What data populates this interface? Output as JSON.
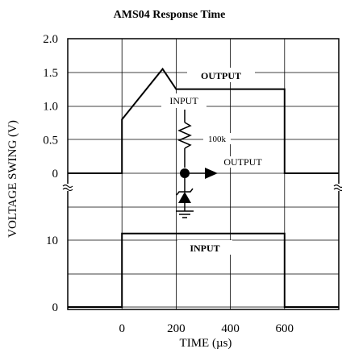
{
  "chart_data": {
    "type": "line",
    "title": "AMS04 Response Time",
    "xlabel": "TIME (µs)",
    "ylabel": "VOLTAGE SWING (V)",
    "x_ticks": [
      "0",
      "200",
      "400",
      "600"
    ],
    "upper_panel": {
      "y_ticks": [
        "2.0",
        "1.5",
        "1.0",
        "0.5",
        "0"
      ],
      "ylim": [
        0,
        2.0
      ],
      "xlim": [
        -200,
        800
      ],
      "series": [
        {
          "name": "OUTPUT",
          "x": [
            -200,
            0,
            0,
            150,
            200,
            600,
            600,
            800
          ],
          "y": [
            0,
            0,
            0.8,
            1.55,
            1.25,
            1.25,
            0,
            0
          ]
        }
      ]
    },
    "lower_panel": {
      "y_ticks": [
        "10",
        "0"
      ],
      "ylim": [
        0,
        10
      ],
      "xlim": [
        -200,
        800
      ],
      "series": [
        {
          "name": "INPUT",
          "x": [
            -200,
            0,
            0,
            600,
            600,
            800
          ],
          "y": [
            0,
            0,
            11,
            11,
            0,
            0
          ]
        }
      ]
    },
    "schematic": {
      "input_label": "INPUT",
      "resistor_label": "100k",
      "output_label": "OUTPUT"
    },
    "grid": true
  }
}
